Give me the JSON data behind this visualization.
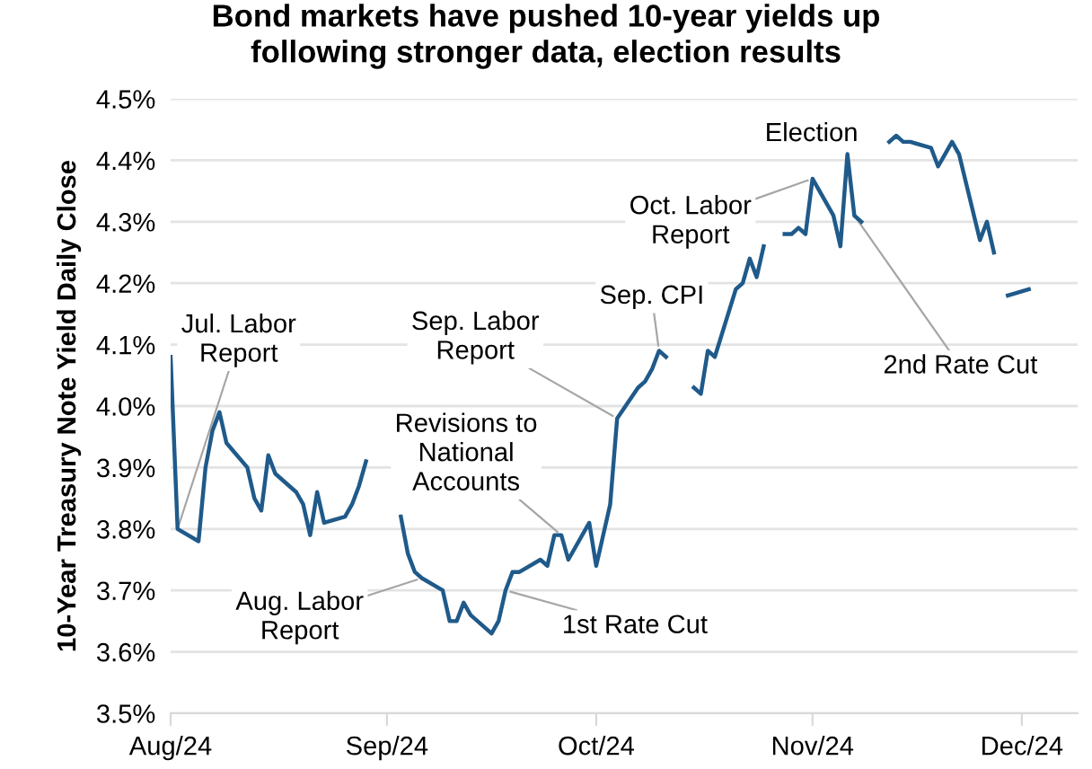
{
  "chart_data": {
    "type": "line",
    "title": "Bond markets have pushed 10-year yields up\nfollowing stronger data, election results",
    "ylabel": "10-Year Treasury Note Yield Daily Close",
    "x": [
      "2024-08-01",
      "2024-08-02",
      "2024-08-05",
      "2024-08-06",
      "2024-08-07",
      "2024-08-08",
      "2024-08-09",
      "2024-08-12",
      "2024-08-13",
      "2024-08-14",
      "2024-08-15",
      "2024-08-16",
      "2024-08-19",
      "2024-08-20",
      "2024-08-21",
      "2024-08-22",
      "2024-08-23",
      "2024-08-26",
      "2024-08-27",
      "2024-08-28",
      "2024-08-29",
      "2024-08-30",
      "2024-09-03",
      "2024-09-04",
      "2024-09-05",
      "2024-09-06",
      "2024-09-09",
      "2024-09-10",
      "2024-09-11",
      "2024-09-12",
      "2024-09-13",
      "2024-09-16",
      "2024-09-17",
      "2024-09-18",
      "2024-09-19",
      "2024-09-20",
      "2024-09-23",
      "2024-09-24",
      "2024-09-25",
      "2024-09-26",
      "2024-09-27",
      "2024-09-30",
      "2024-10-01",
      "2024-10-02",
      "2024-10-03",
      "2024-10-04",
      "2024-10-07",
      "2024-10-08",
      "2024-10-09",
      "2024-10-10",
      "2024-10-11",
      "2024-10-14",
      "2024-10-15",
      "2024-10-16",
      "2024-10-17",
      "2024-10-18",
      "2024-10-21",
      "2024-10-22",
      "2024-10-23",
      "2024-10-24",
      "2024-10-25",
      "2024-10-26",
      "2024-10-28",
      "2024-10-29",
      "2024-10-30",
      "2024-10-31",
      "2024-11-01",
      "2024-11-04",
      "2024-11-05",
      "2024-11-06",
      "2024-11-07",
      "2024-11-08",
      "2024-11-11",
      "2024-11-12",
      "2024-11-13",
      "2024-11-14",
      "2024-11-15",
      "2024-11-18",
      "2024-11-19",
      "2024-11-20",
      "2024-11-21",
      "2024-11-22",
      "2024-11-25",
      "2024-11-26",
      "2024-11-27",
      "2024-11-28",
      "2024-11-29",
      "2024-12-02"
    ],
    "series": [
      {
        "color": "#1f5a8a",
        "values": [
          4.08,
          3.8,
          3.78,
          3.9,
          3.96,
          3.99,
          3.94,
          3.9,
          3.85,
          3.83,
          3.92,
          3.89,
          3.86,
          3.84,
          3.79,
          3.86,
          3.81,
          3.82,
          3.84,
          3.87,
          3.91,
          null,
          3.82,
          3.76,
          3.73,
          3.72,
          3.7,
          3.65,
          3.65,
          3.68,
          3.66,
          3.63,
          3.65,
          3.7,
          3.73,
          3.73,
          3.75,
          3.74,
          3.79,
          3.79,
          3.75,
          3.81,
          3.74,
          3.79,
          3.84,
          3.98,
          4.03,
          4.04,
          4.06,
          4.09,
          4.08,
          null,
          4.03,
          4.02,
          4.09,
          4.08,
          4.19,
          4.2,
          4.24,
          4.21,
          4.26,
          null,
          4.28,
          4.28,
          4.29,
          4.28,
          4.37,
          4.31,
          4.26,
          4.41,
          4.31,
          4.3,
          null,
          4.43,
          4.44,
          4.43,
          4.43,
          4.42,
          4.39,
          4.41,
          4.43,
          4.41,
          4.27,
          4.3,
          4.25,
          null,
          4.18,
          4.19
        ]
      }
    ],
    "xlim": [
      "2024-08-01",
      "2024-12-09"
    ],
    "xticks": [
      {
        "value": "2024-08-01",
        "label": "Aug/24"
      },
      {
        "value": "2024-09-01",
        "label": "Sep/24"
      },
      {
        "value": "2024-10-01",
        "label": "Oct/24"
      },
      {
        "value": "2024-11-01",
        "label": "Nov/24"
      },
      {
        "value": "2024-12-01",
        "label": "Dec/24"
      }
    ],
    "ylim": [
      3.5,
      4.5
    ],
    "yticks": [
      {
        "value": 3.5,
        "label": "3.5%"
      },
      {
        "value": 3.6,
        "label": "3.6%"
      },
      {
        "value": 3.7,
        "label": "3.7%"
      },
      {
        "value": 3.8,
        "label": "3.8%"
      },
      {
        "value": 3.9,
        "label": "3.9%"
      },
      {
        "value": 4.0,
        "label": "4.0%"
      },
      {
        "value": 4.1,
        "label": "4.1%"
      },
      {
        "value": 4.2,
        "label": "4.2%"
      },
      {
        "value": 4.3,
        "label": "4.3%"
      },
      {
        "value": 4.4,
        "label": "4.4%"
      },
      {
        "value": 4.5,
        "label": "4.5%"
      }
    ],
    "grid": "y",
    "legend": false,
    "marker": "none",
    "line_style": "solid",
    "annotations": [
      {
        "text": "Jul. Labor\nReport",
        "x": "2024-08-02",
        "y": 3.8
      },
      {
        "text": "Aug. Labor\nReport",
        "x": "2024-09-06",
        "y": 3.72
      },
      {
        "text": "Revisions to\nNational\nAccounts",
        "x": "2024-09-26",
        "y": 3.79
      },
      {
        "text": "1st Rate Cut",
        "x": "2024-09-18",
        "y": 3.7
      },
      {
        "text": "Sep. Labor\nReport",
        "x": "2024-10-04",
        "y": 3.98
      },
      {
        "text": "Sep. CPI",
        "x": "2024-10-10",
        "y": 4.09
      },
      {
        "text": "Oct. Labor\nReport",
        "x": "2024-11-01",
        "y": 4.37
      },
      {
        "text": "Election",
        "x": "2024-11-06",
        "y": 4.41
      },
      {
        "text": "2nd Rate Cut",
        "x": "2024-11-07",
        "y": 4.31
      }
    ]
  }
}
